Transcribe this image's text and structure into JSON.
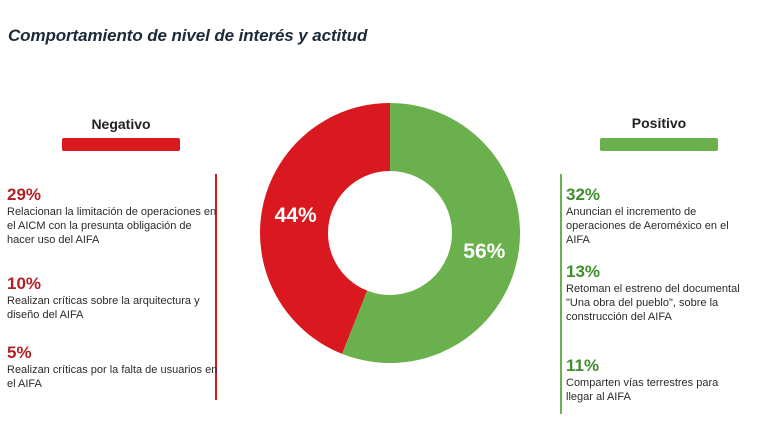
{
  "title": "Comportamiento de nivel de interés y actitud",
  "colors": {
    "negative": "#d9191f",
    "positive": "#6ab04c"
  },
  "negative": {
    "label": "Negativo",
    "items": [
      {
        "pct": "29%",
        "text": "Relacionan la limitación de operaciones en el AICM con la presunta obligación de hacer uso del AIFA"
      },
      {
        "pct": "10%",
        "text": "Realizan críticas sobre  la arquitectura y diseño del AIFA"
      },
      {
        "pct": "5%",
        "text": "Realizan críticas por la falta de usuarios en el AIFA"
      }
    ]
  },
  "positive": {
    "label": "Positivo",
    "items": [
      {
        "pct": "32%",
        "text": "Anuncian el incremento de operaciones de Aeroméxico en el AIFA"
      },
      {
        "pct": "13%",
        "text": "Retoman el estreno del documental \"Una obra del pueblo\", sobre la construcción del AIFA"
      },
      {
        "pct": "11%",
        "text": "Comparten vías terrestres para llegar al AIFA"
      }
    ]
  },
  "chart_data": {
    "type": "pie",
    "subtype": "donut",
    "categories": [
      "Negativo",
      "Positivo"
    ],
    "values": [
      44,
      56
    ],
    "labels": [
      "44%",
      "56%"
    ],
    "colors": [
      "#d9191f",
      "#6ab04c"
    ]
  }
}
